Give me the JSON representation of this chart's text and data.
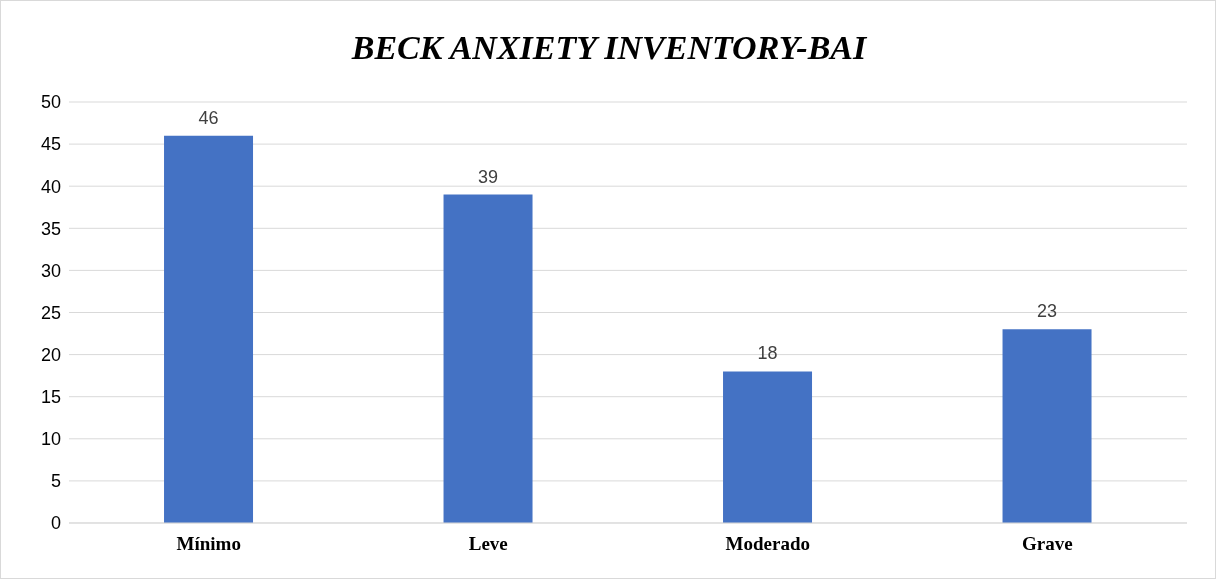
{
  "chart_data": {
    "type": "bar",
    "title": "BECK ANXIETY INVENTORY-BAI",
    "categories": [
      "Mínimo",
      "Leve",
      "Moderado",
      "Grave"
    ],
    "values": [
      46,
      39,
      18,
      23
    ],
    "color": "#4472c4",
    "ylim": [
      0,
      50
    ],
    "yticks": [
      0,
      5,
      10,
      15,
      20,
      25,
      30,
      35,
      40,
      45,
      50
    ],
    "grid": "y",
    "data_labels": true
  }
}
